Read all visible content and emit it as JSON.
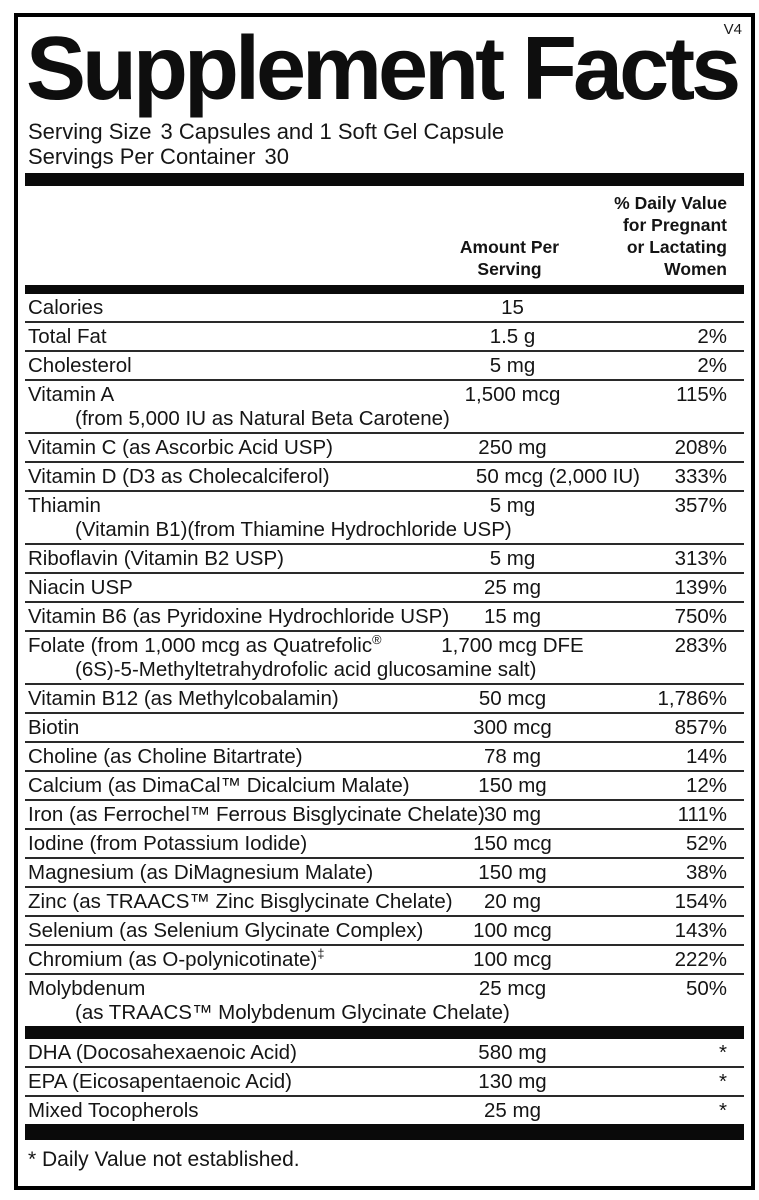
{
  "version_tag": "V4",
  "title": "Supplement Facts",
  "serving": {
    "size_label": "Serving Size",
    "size_value": "3 Capsules and 1 Soft Gel Capsule",
    "container_label": "Servings Per Container",
    "container_value": "30"
  },
  "headers": {
    "amount_lines": [
      "Amount Per",
      "Serving"
    ],
    "dv_lines": [
      "% Daily Value",
      "for Pregnant",
      "or Lactating",
      "Women"
    ]
  },
  "main_rows": [
    {
      "name": "Calories",
      "amount": "15",
      "dv": ""
    },
    {
      "name": "Total Fat",
      "amount": "1.5 g",
      "dv": "2%"
    },
    {
      "name": "Cholesterol",
      "amount": "5 mg",
      "dv": "2%"
    },
    {
      "name": "Vitamin A",
      "sub": "(from 5,000 IU as Natural Beta Carotene)",
      "amount": "1,500 mcg",
      "dv": "115%"
    },
    {
      "name": "Vitamin C (as Ascorbic Acid USP)",
      "amount": "250 mg",
      "dv": "208%"
    },
    {
      "name": "Vitamin D (D3 as Cholecalciferol)",
      "amount": "50 mcg (2,000 IU)",
      "dv": "333%",
      "amount_align": "right"
    },
    {
      "name": "Thiamin",
      "sub": "(Vitamin B1)(from Thiamine Hydrochloride USP)",
      "amount": "5 mg",
      "dv": "357%"
    },
    {
      "name": "Riboflavin (Vitamin B2 USP)",
      "amount": "5 mg",
      "dv": "313%"
    },
    {
      "name": "Niacin USP",
      "amount": "25 mg",
      "dv": "139%"
    },
    {
      "name": "Vitamin B6 (as Pyridoxine Hydrochloride USP)",
      "amount": "15 mg",
      "dv": "750%"
    },
    {
      "name": "Folate (from 1,000 mcg as Quatrefolic®",
      "sub": "(6S)-5-Methyltetrahydrofolic acid glucosamine salt)",
      "amount": "1,700 mcg DFE",
      "dv": "283%"
    },
    {
      "name": "Vitamin B12 (as Methylcobalamin)",
      "amount": "50 mcg",
      "dv": "1,786%"
    },
    {
      "name": "Biotin",
      "amount": "300 mcg",
      "dv": "857%"
    },
    {
      "name": "Choline (as Choline Bitartrate)",
      "amount": "78 mg",
      "dv": "14%"
    },
    {
      "name": "Calcium (as DimaCal™ Dicalcium Malate)",
      "amount": "150 mg",
      "dv": "12%"
    },
    {
      "name": "Iron (as Ferrochel™ Ferrous Bisglycinate Chelate)",
      "amount": "30 mg",
      "dv": "111%"
    },
    {
      "name": "Iodine (from Potassium Iodide)",
      "amount": "150 mcg",
      "dv": "52%"
    },
    {
      "name": "Magnesium (as DiMagnesium Malate)",
      "amount": "150 mg",
      "dv": "38%"
    },
    {
      "name": "Zinc (as TRAACS™ Zinc Bisglycinate Chelate)",
      "amount": "20 mg",
      "dv": "154%"
    },
    {
      "name": "Selenium (as Selenium Glycinate Complex)",
      "amount": "100 mcg",
      "dv": "143%"
    },
    {
      "name": "Chromium (as O-polynicotinate)‡",
      "amount": "100 mcg",
      "dv": "222%"
    },
    {
      "name": "Molybdenum",
      "sub": "(as TRAACS™ Molybdenum Glycinate Chelate)",
      "amount": "25 mcg",
      "dv": "50%"
    }
  ],
  "omega_rows": [
    {
      "name": "DHA (Docosahexaenoic Acid)",
      "amount": "580 mg",
      "dv": "*"
    },
    {
      "name": "EPA (Eicosapentaenoic Acid)",
      "amount": "130 mg",
      "dv": "*"
    },
    {
      "name": "Mixed Tocopherols",
      "amount": "25 mg",
      "dv": "*"
    }
  ],
  "footnote": "* Daily Value not established.",
  "colors": {
    "ink": "#111111",
    "bar": "#0a0a0a",
    "background": "#ffffff"
  }
}
